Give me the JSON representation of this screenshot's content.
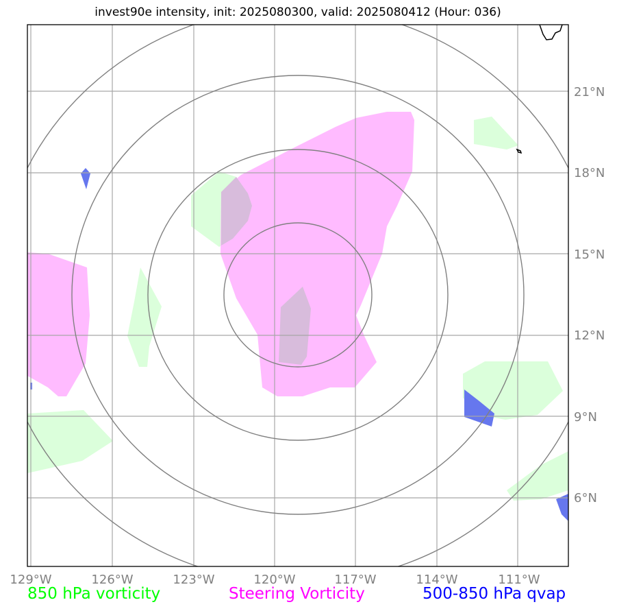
{
  "title": "invest90e intensity, init: 2025080300, valid: 2025080412 (Hour: 036)",
  "lon_ticks": [
    "129°W",
    "126°W",
    "123°W",
    "120°W",
    "117°W",
    "114°W",
    "111°W"
  ],
  "lat_ticks": [
    "21°N",
    "18°N",
    "15°N",
    "12°N",
    "9°N",
    "6°N"
  ],
  "legend": {
    "vorticity_850": "850 hPa vorticity",
    "steering_vorticity": "Steering Vorticity",
    "qvap_500_850": "500-850 hPa qvap"
  },
  "colors": {
    "vorticity_850": "#00ff00",
    "steering_vorticity": "#ff00ff",
    "qvap_500_850": "#0000ff",
    "grid": "#808080",
    "coastline": "#000000"
  }
}
